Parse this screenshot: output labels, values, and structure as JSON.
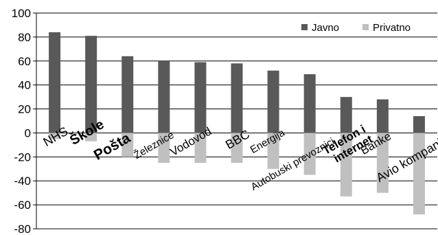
{
  "chart_data": {
    "type": "bar",
    "categories": [
      "NHS",
      "Škole",
      "Pošta",
      "Železnice",
      "Vodovod",
      "BBC",
      "Energija",
      "Autobuski prevoznici",
      "Telefon i internet",
      "Banke",
      "Avio kompanije"
    ],
    "series": [
      {
        "name": "Javno",
        "values": [
          84,
          81,
          64,
          60,
          59,
          58,
          52,
          49,
          30,
          28,
          14
        ],
        "color": "#595959"
      },
      {
        "name": "Privatno",
        "values": [
          -5,
          -7,
          -20,
          -25,
          -25,
          -25,
          -30,
          -35,
          -53,
          -50,
          -68
        ],
        "color": "#c0c0c0"
      }
    ],
    "ylim": [
      -80,
      100
    ],
    "yticks": [
      -80,
      -60,
      -40,
      -20,
      0,
      20,
      40,
      60,
      80,
      100
    ],
    "grid": true,
    "legend": "top-right",
    "title": "",
    "xlabel": "",
    "ylabel": ""
  }
}
